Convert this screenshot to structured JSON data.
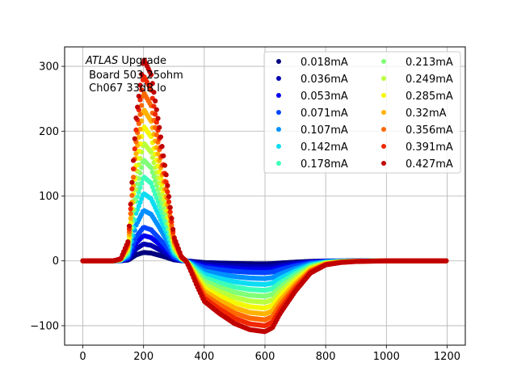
{
  "chart_data": {
    "type": "scatter",
    "title": "",
    "xlabel": "",
    "ylabel": "",
    "xlim": [
      -60,
      1260
    ],
    "ylim": [
      -130,
      330
    ],
    "x_ticks": [
      0,
      200,
      400,
      600,
      800,
      1000,
      1200
    ],
    "y_ticks": [
      -100,
      0,
      100,
      200,
      300
    ],
    "grid": true,
    "annotation": {
      "line1_italic": "ATLAS",
      "line1_rest": " Upgrade",
      "line2": " Board 503 25ohm",
      "line3": " Ch067 33dB lo"
    },
    "legend": {
      "placement": "top-right",
      "columns": 2
    },
    "pulse_shape": {
      "note": "normalized bipolar pulse in data units: value = amplitude_scale * shape(x)",
      "x": [
        0,
        100,
        125,
        150,
        175,
        200,
        225,
        250,
        275,
        300,
        325,
        340,
        350,
        375,
        400,
        450,
        500,
        550,
        600,
        625,
        650,
        700,
        750,
        800,
        850,
        900,
        1000,
        1200
      ],
      "shape": [
        0,
        0,
        0.01,
        0.1,
        0.7,
        1.0,
        0.92,
        0.68,
        0.42,
        0.12,
        0.02,
        0.0,
        -0.03,
        -0.12,
        -0.2,
        -0.26,
        -0.31,
        -0.34,
        -0.35,
        -0.33,
        -0.26,
        -0.15,
        -0.06,
        -0.02,
        -0.008,
        -0.003,
        0,
        0
      ]
    },
    "series": [
      {
        "name": "0.018mA",
        "peak": 13,
        "color": "#00007f"
      },
      {
        "name": "0.036mA",
        "peak": 26,
        "color": "#0000b2"
      },
      {
        "name": "0.053mA",
        "peak": 39,
        "color": "#0000f1"
      },
      {
        "name": "0.071mA",
        "peak": 52,
        "color": "#0044ff"
      },
      {
        "name": "0.107mA",
        "peak": 78,
        "color": "#0090ff"
      },
      {
        "name": "0.142mA",
        "peak": 104,
        "color": "#0ddcf2"
      },
      {
        "name": "0.178mA",
        "peak": 130,
        "color": "#3dffb9"
      },
      {
        "name": "0.213mA",
        "peak": 156,
        "color": "#80ff77"
      },
      {
        "name": "0.249mA",
        "peak": 182,
        "color": "#b9ff3d"
      },
      {
        "name": "0.285mA",
        "peak": 208,
        "color": "#f4f802"
      },
      {
        "name": "0.32mA",
        "peak": 234,
        "color": "#ffb200"
      },
      {
        "name": "0.356mA",
        "peak": 260,
        "color": "#ff6800"
      },
      {
        "name": "0.391mA",
        "peak": 286,
        "color": "#f12700"
      },
      {
        "name": "0.427mA",
        "peak": 312,
        "color": "#c10000"
      }
    ]
  }
}
